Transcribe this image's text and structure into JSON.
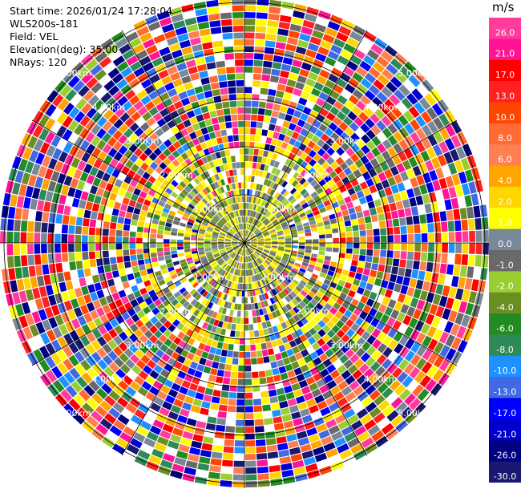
{
  "info": {
    "start_time": "Start time: 2026/01/24 17:28:04",
    "instrument": "WLS200s-181",
    "field": "Field: VEL",
    "elevation": "Elevation(deg): 35.00",
    "nrays": "NRays: 120"
  },
  "colorbar": {
    "unit": "m/s",
    "ticks": [
      "26.0",
      "21.0",
      "17.0",
      "13.0",
      "10.0",
      "8.0",
      "6.0",
      "4.0",
      "2.0",
      "1.0",
      "0.0",
      "-1.0",
      "-2.0",
      "-4.0",
      "-6.0",
      "-8.0",
      "-10.0",
      "-13.0",
      "-17.0",
      "-21.0",
      "-26.0",
      "-30.0"
    ],
    "colors": [
      "#ff3c9b",
      "#ff1493",
      "#ff0000",
      "#ff2020",
      "#ff4500",
      "#ff6a35",
      "#ff7f50",
      "#ffa500",
      "#ffd700",
      "#ffff00",
      "#778899",
      "#696969",
      "#9acd32",
      "#6b8e23",
      "#228b22",
      "#2e8b57",
      "#1e90ff",
      "#4169e1",
      "#0000ff",
      "#0000cd",
      "#000080",
      "#191970"
    ]
  },
  "chart_data": {
    "type": "heatmap",
    "projection": "polar PPI",
    "field": "VEL",
    "units": "m/s",
    "range_rings_km": [
      1,
      2,
      3,
      4,
      5
    ],
    "range_ring_labels": [
      "1.00km",
      "2.00km",
      "3.00km",
      "4.00km",
      "5.00km"
    ],
    "n_rays": 120,
    "elevation_deg": 35.0,
    "color_scale_m_s": [
      -30,
      -26,
      -21,
      -17,
      -13,
      -10,
      -8,
      -6,
      -4,
      -2,
      -1,
      0,
      1,
      2,
      4,
      6,
      8,
      10,
      13,
      17,
      21,
      26
    ],
    "pattern": "near-range gates (<~1 km) mostly -2 to 2 m/s; outer gates noisy across full scale"
  }
}
